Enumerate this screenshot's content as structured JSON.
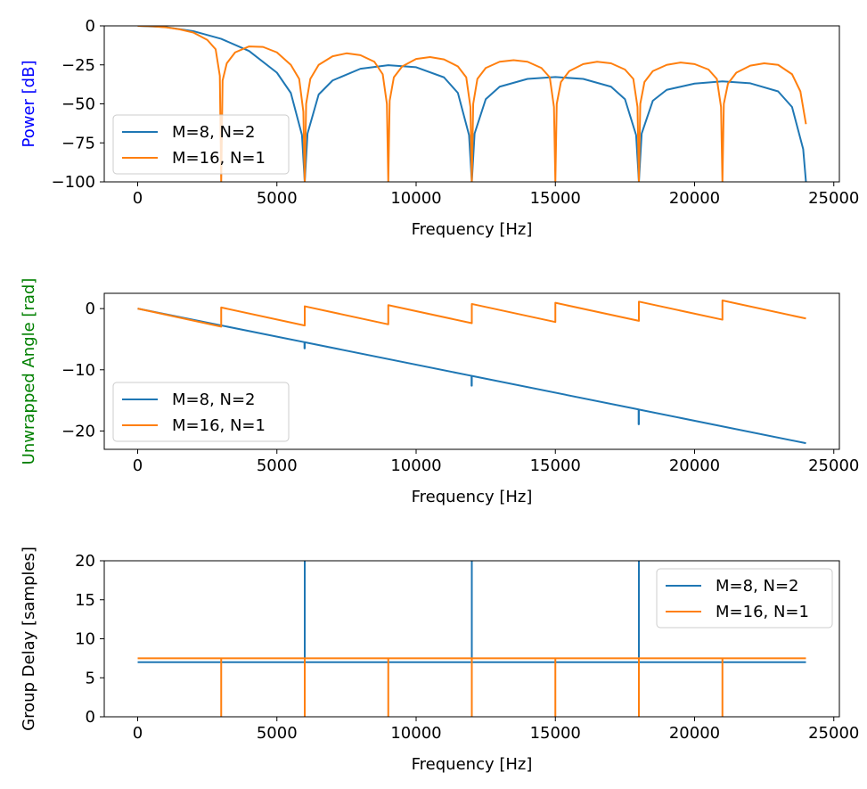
{
  "chart_data": [
    {
      "type": "line",
      "xlabel": "Frequency [Hz]",
      "ylabel": "Power [dB]",
      "ylabel_color": "#0000ff",
      "xlim": [
        -1200,
        25200
      ],
      "ylim": [
        -100,
        0
      ],
      "xticks": [
        0,
        5000,
        10000,
        15000,
        20000,
        25000
      ],
      "yticks": [
        0,
        -25,
        -50,
        -75,
        -100
      ],
      "legend_location": "lower-left",
      "grid": false,
      "series": [
        {
          "name": "M=8, N=2",
          "color": "#1f77b4",
          "x": [
            0,
            1000,
            2000,
            3000,
            4000,
            5000,
            5500,
            5900,
            6000,
            6100,
            6500,
            7000,
            8000,
            9000,
            10000,
            11000,
            11500,
            11900,
            12000,
            12100,
            12500,
            13000,
            14000,
            15000,
            16000,
            17000,
            17500,
            17900,
            18000,
            18100,
            18500,
            19000,
            20000,
            21000,
            22000,
            23000,
            23500,
            23900,
            24000
          ],
          "values": [
            0,
            -0.8,
            -3.4,
            -8.3,
            -16.1,
            -30,
            -43,
            -70,
            -100,
            -69,
            -44,
            -35,
            -27.5,
            -25.2,
            -26.5,
            -33,
            -43,
            -70,
            -100,
            -69,
            -47,
            -39,
            -34,
            -32.8,
            -34,
            -39,
            -47,
            -70,
            -100,
            -69,
            -48,
            -41,
            -37,
            -35.6,
            -36.8,
            -42,
            -52,
            -79,
            -100
          ]
        },
        {
          "name": "M=16, N=1",
          "color": "#ff7f0e",
          "x": [
            0,
            500,
            1000,
            1500,
            2000,
            2500,
            2800,
            2950,
            3000,
            3050,
            3200,
            3500,
            4000,
            4500,
            5000,
            5500,
            5800,
            5950,
            6000,
            6050,
            6200,
            6500,
            7000,
            7500,
            8000,
            8500,
            8800,
            8950,
            9000,
            9050,
            9200,
            9500,
            10000,
            10500,
            11000,
            11500,
            11800,
            11950,
            12000,
            12050,
            12200,
            12500,
            13000,
            13500,
            14000,
            14500,
            14800,
            14950,
            15000,
            15050,
            15200,
            15500,
            16000,
            16500,
            17000,
            17500,
            17800,
            17950,
            18000,
            18050,
            18200,
            18500,
            19000,
            19500,
            20000,
            20500,
            20800,
            20950,
            21000,
            21050,
            21200,
            21500,
            22000,
            22500,
            23000,
            23500,
            23800,
            24000
          ],
          "values": [
            0,
            -0.2,
            -0.9,
            -2.2,
            -4.3,
            -9,
            -15,
            -32,
            -100,
            -35,
            -24,
            -17,
            -13.2,
            -13.5,
            -17,
            -25,
            -34,
            -55,
            -100,
            -50,
            -34,
            -25,
            -19.5,
            -17.6,
            -18.8,
            -23,
            -31,
            -50,
            -100,
            -48,
            -33,
            -26,
            -21.2,
            -20,
            -21.5,
            -26,
            -33,
            -52,
            -100,
            -50,
            -34,
            -27,
            -23,
            -22,
            -23,
            -27,
            -33,
            -52,
            -100,
            -50,
            -36,
            -29,
            -24.5,
            -23,
            -24,
            -28,
            -34,
            -52,
            -100,
            -50,
            -36,
            -29,
            -25,
            -23.5,
            -24.5,
            -28,
            -34,
            -52,
            -100,
            -50,
            -37,
            -30,
            -25.5,
            -24,
            -25,
            -31,
            -42,
            -63
          ]
        }
      ]
    },
    {
      "type": "line",
      "xlabel": "Frequency [Hz]",
      "ylabel": "Unwrapped Angle [rad]",
      "ylabel_color": "#008000",
      "xlim": [
        -1200,
        25200
      ],
      "ylim": [
        -23,
        2.5
      ],
      "xticks": [
        0,
        5000,
        10000,
        15000,
        20000,
        25000
      ],
      "yticks": [
        0,
        -10,
        -20
      ],
      "legend_location": "lower-left",
      "grid": false,
      "series": [
        {
          "name": "M=8, N=2",
          "color": "#1f77b4",
          "x": [
            0,
            5990,
            5990,
            6000,
            6000,
            11990,
            11990,
            12000,
            12000,
            17990,
            17990,
            18000,
            18000,
            24000
          ],
          "values": [
            0,
            -5.49,
            -6.5,
            -6.5,
            -5.5,
            -10.99,
            -12.6,
            -12.6,
            -11.0,
            -16.48,
            -18.9,
            -18.9,
            -16.5,
            -22.0
          ]
        },
        {
          "name": "M=16, N=1",
          "color": "#ff7f0e",
          "x": [
            0,
            3000,
            3000,
            6000,
            6000,
            9000,
            9000,
            12000,
            12000,
            15000,
            15000,
            18000,
            18000,
            21000,
            21000,
            24000
          ],
          "values": [
            0,
            -2.95,
            0.19,
            -2.76,
            0.38,
            -2.57,
            0.57,
            -2.38,
            0.76,
            -2.19,
            0.95,
            -2.0,
            1.14,
            -1.81,
            1.33,
            -1.62
          ]
        }
      ]
    },
    {
      "type": "line",
      "xlabel": "Frequency [Hz]",
      "ylabel": "Group Delay [samples]",
      "xlim": [
        -1200,
        25200
      ],
      "ylim": [
        0,
        20
      ],
      "xticks": [
        0,
        5000,
        10000,
        15000,
        20000,
        25000
      ],
      "yticks": [
        0,
        5,
        10,
        15,
        20
      ],
      "legend_location": "upper-right",
      "grid": false,
      "series": [
        {
          "name": "M=8, N=2",
          "color": "#1f77b4",
          "x": [
            0,
            6000,
            6000,
            6000,
            12000,
            12000,
            12000,
            18000,
            18000,
            18000,
            24000
          ],
          "values": [
            7,
            7,
            20,
            7,
            7,
            20,
            7,
            7,
            20,
            7,
            7
          ]
        },
        {
          "name": "M=16, N=1",
          "color": "#ff7f0e",
          "x": [
            0,
            3000,
            3000,
            3000,
            6000,
            6000,
            6000,
            9000,
            9000,
            9000,
            12000,
            12000,
            12000,
            15000,
            15000,
            15000,
            18000,
            18000,
            18000,
            21000,
            21000,
            21000,
            24000
          ],
          "values": [
            7.5,
            7.5,
            0,
            7.5,
            7.5,
            0,
            7.5,
            7.5,
            0,
            7.5,
            7.5,
            0,
            7.5,
            7.5,
            0,
            7.5,
            7.5,
            0,
            7.5,
            7.5,
            0,
            7.5,
            7.5
          ]
        }
      ]
    }
  ]
}
